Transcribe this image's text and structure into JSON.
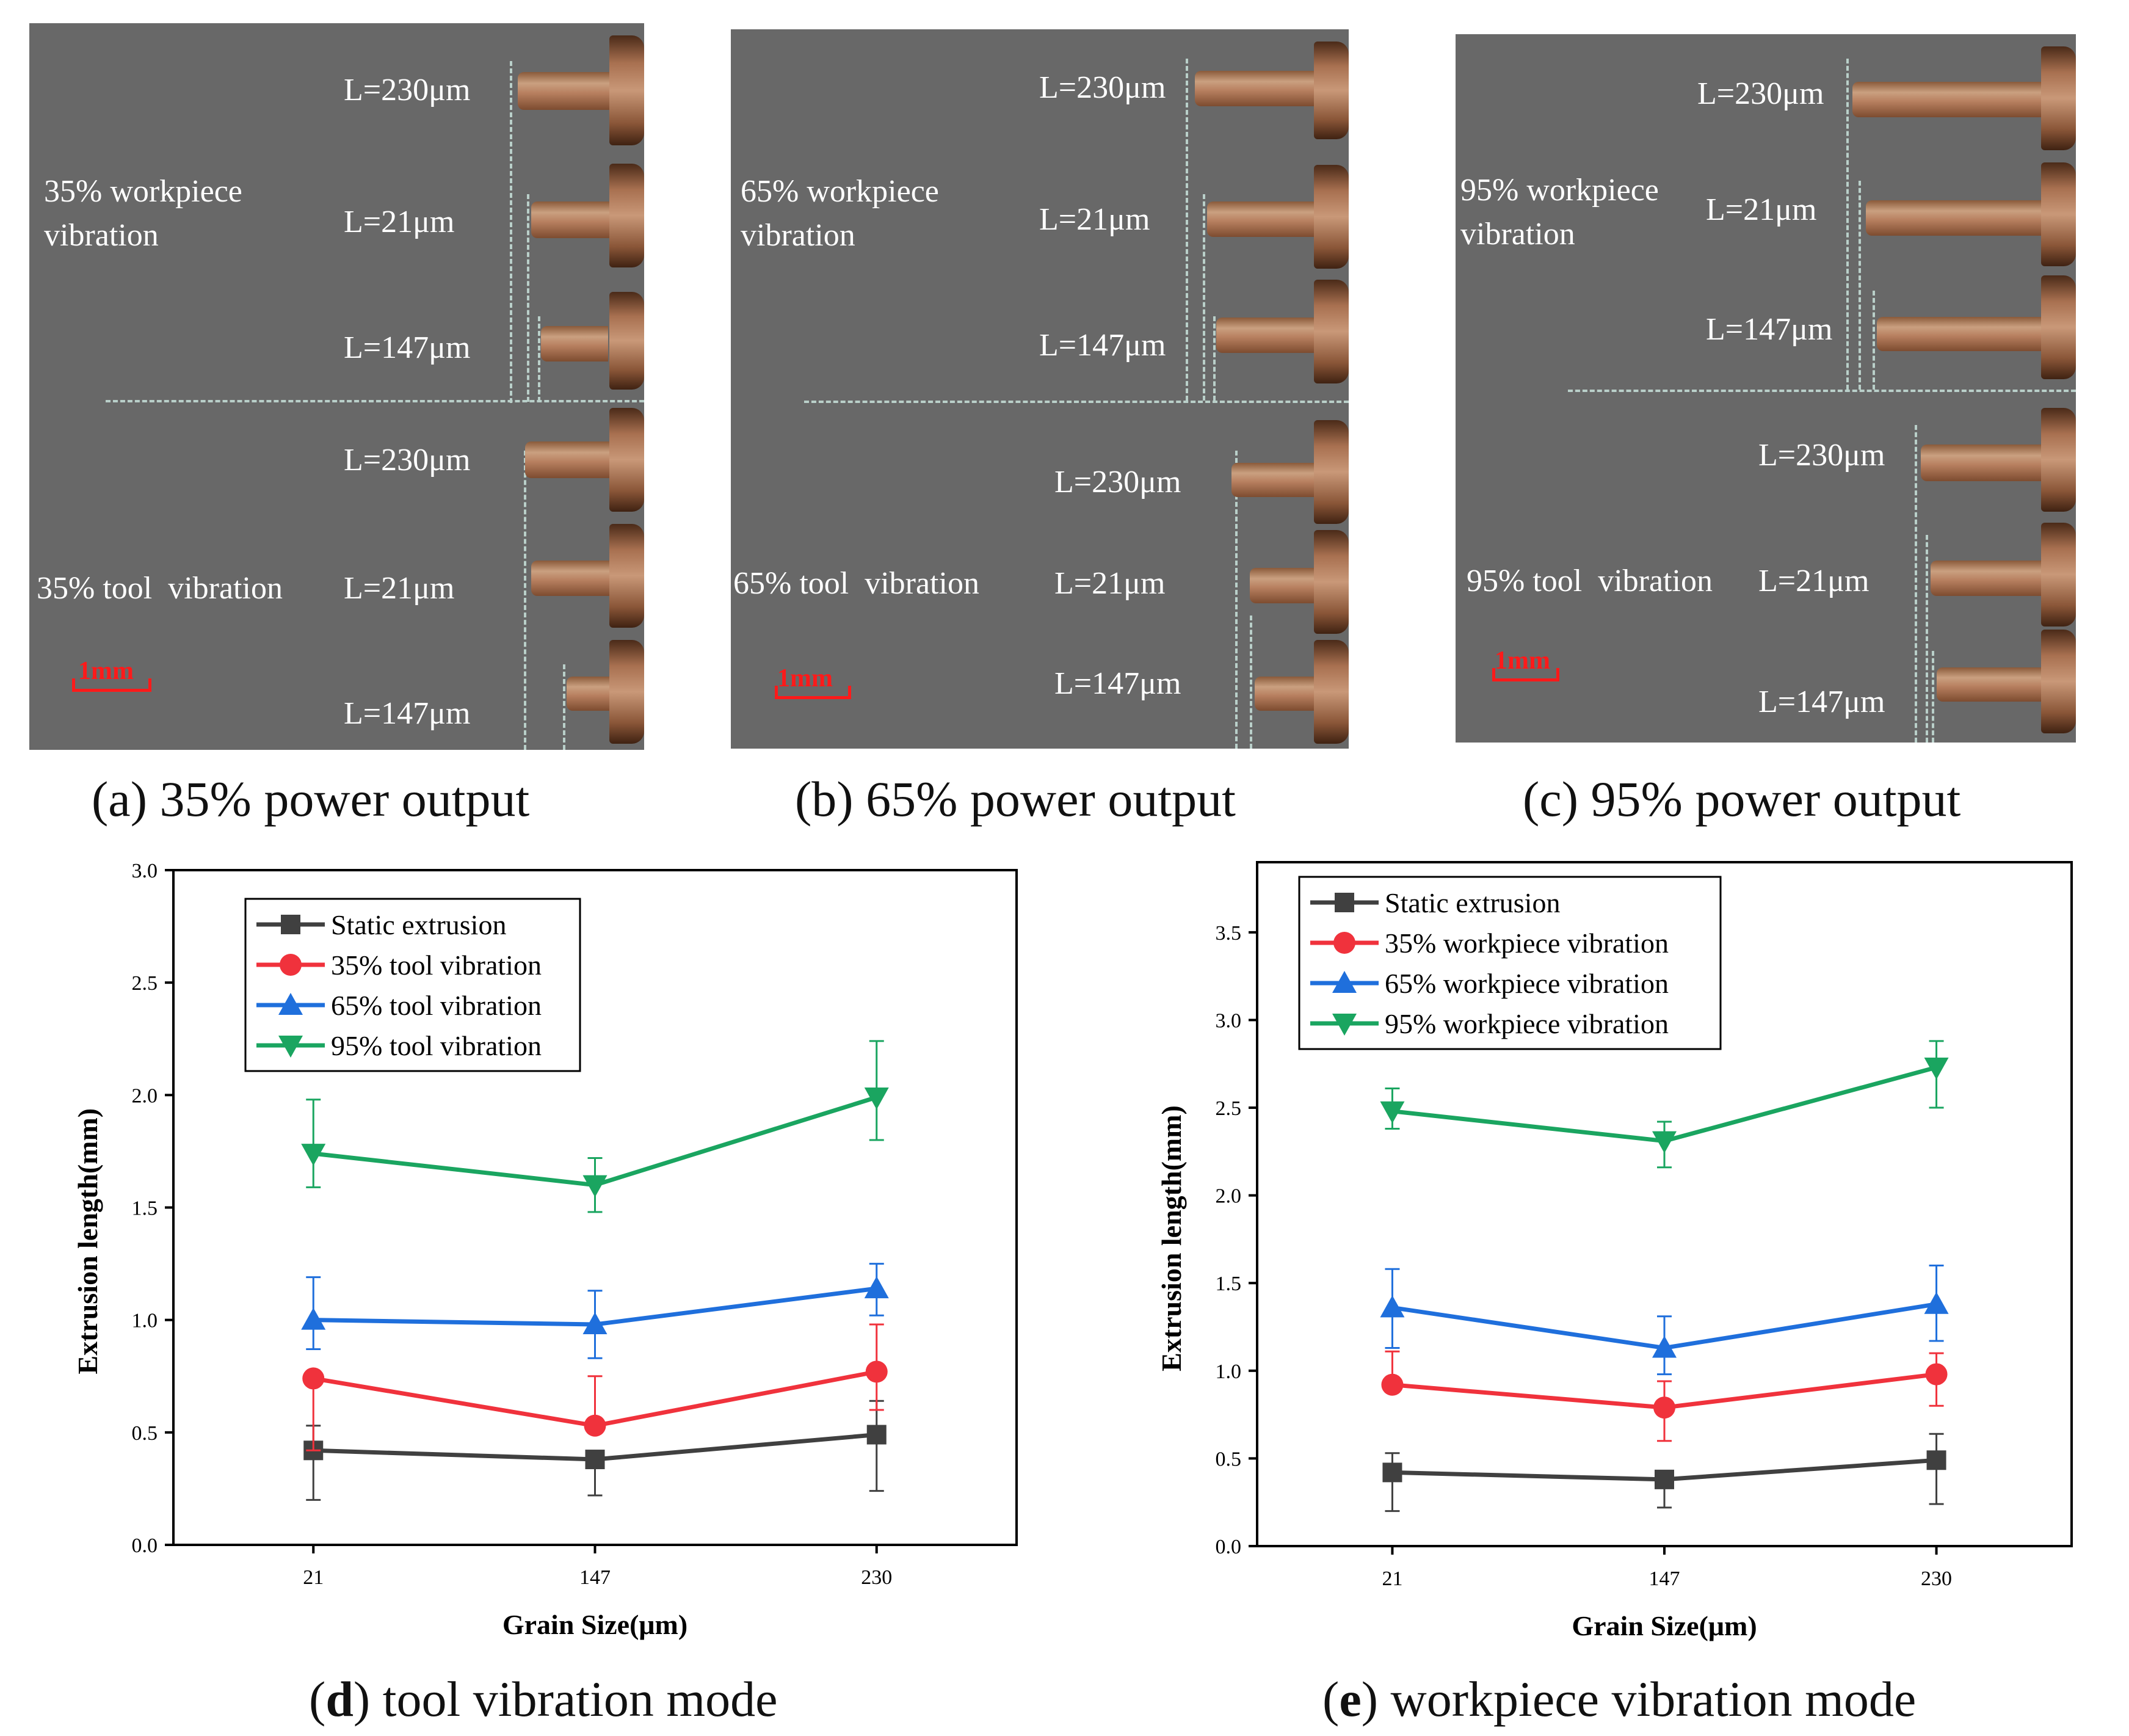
{
  "photos": [
    {
      "caption": "(a) 35% power output",
      "top_mode": "35% workpiece vibration",
      "top_mode_lines": [
        "35% workpiece",
        "vibration"
      ],
      "bottom_mode": "35% tool  vibration",
      "scale": "1mm",
      "top_labels": [
        "L=230μm",
        "L=21μm",
        "L=147μm"
      ],
      "bottom_labels": [
        "L=230μm",
        "L=21μm",
        "L=147μm"
      ]
    },
    {
      "caption": "(b) 65% power output",
      "top_mode": "65% workpiece vibration",
      "top_mode_lines": [
        "65% workpiece",
        "vibration"
      ],
      "bottom_mode": "65% tool  vibration",
      "scale": "1mm",
      "top_labels": [
        "L=230μm",
        "L=21μm",
        "L=147μm"
      ],
      "bottom_labels": [
        "L=230μm",
        "L=21μm",
        "L=147μm"
      ]
    },
    {
      "caption": "(c) 95% power output",
      "top_mode": "95% workpiece vibration",
      "top_mode_lines": [
        "95% workpiece",
        "vibration"
      ],
      "bottom_mode": "95% tool  vibration",
      "scale": "1mm",
      "top_labels": [
        "L=230μm",
        "L=21μm",
        "L=147μm"
      ],
      "bottom_labels": [
        "L=230μm",
        "L=21μm",
        "L=147μm"
      ]
    }
  ],
  "colors": {
    "static": "#404040",
    "p35": "#f0323c",
    "p65": "#1f6fdc",
    "p95": "#1aa560",
    "photo_bg": "#686868",
    "scale": "#ff1a1a"
  },
  "chart_data": [
    {
      "type": "line",
      "caption_letter": "d",
      "caption_rest": " tool vibration mode",
      "xlabel": "Grain Size(μm)",
      "ylabel": "Extrusion length(mm)",
      "categories": [
        "21",
        "147",
        "230"
      ],
      "ylim": [
        0.0,
        3.0
      ],
      "yticks": [
        "0.0",
        "0.5",
        "1.0",
        "1.5",
        "2.0",
        "2.5",
        "3.0"
      ],
      "legend_position": "top-left",
      "series": [
        {
          "name": "Static extrusion",
          "marker": "square",
          "color": "#404040",
          "values": [
            0.42,
            0.38,
            0.49
          ],
          "err_low": [
            0.2,
            0.22,
            0.24
          ],
          "err_high": [
            0.53,
            0.38,
            0.64
          ]
        },
        {
          "name": "35% tool vibration",
          "marker": "circle",
          "color": "#f0323c",
          "values": [
            0.74,
            0.53,
            0.77
          ],
          "err_low": [
            0.42,
            0.53,
            0.6
          ],
          "err_high": [
            0.74,
            0.75,
            0.98
          ]
        },
        {
          "name": "65% tool vibration",
          "marker": "triangle-up",
          "color": "#1f6fdc",
          "values": [
            1.0,
            0.98,
            1.14
          ],
          "err_low": [
            0.87,
            0.83,
            1.02
          ],
          "err_high": [
            1.19,
            1.13,
            1.25
          ]
        },
        {
          "name": "95% tool vibration",
          "marker": "triangle-down",
          "color": "#1aa560",
          "values": [
            1.74,
            1.6,
            1.99
          ],
          "err_low": [
            1.59,
            1.48,
            1.8
          ],
          "err_high": [
            1.98,
            1.72,
            2.24
          ]
        }
      ]
    },
    {
      "type": "line",
      "caption_letter": "e",
      "caption_rest": " workpiece vibration mode",
      "xlabel": "Grain Size(μm)",
      "ylabel": "Extrusion length(mm)",
      "categories": [
        "21",
        "147",
        "230"
      ],
      "ylim": [
        0.0,
        3.9
      ],
      "yticks": [
        "0.0",
        "0.5",
        "1.0",
        "1.5",
        "2.0",
        "2.5",
        "3.0",
        "3.5"
      ],
      "legend_position": "top-left",
      "series": [
        {
          "name": "Static extrusion",
          "marker": "square",
          "color": "#404040",
          "values": [
            0.42,
            0.38,
            0.49
          ],
          "err_low": [
            0.2,
            0.22,
            0.24
          ],
          "err_high": [
            0.53,
            0.38,
            0.64
          ]
        },
        {
          "name": "35% workpiece vibration",
          "marker": "circle",
          "color": "#f0323c",
          "values": [
            0.92,
            0.79,
            0.98
          ],
          "err_low": [
            0.92,
            0.6,
            0.8
          ],
          "err_high": [
            1.11,
            0.94,
            1.1
          ]
        },
        {
          "name": "65% workpiece vibration",
          "marker": "triangle-up",
          "color": "#1f6fdc",
          "values": [
            1.36,
            1.13,
            1.38
          ],
          "err_low": [
            1.13,
            0.98,
            1.17
          ],
          "err_high": [
            1.58,
            1.31,
            1.6
          ]
        },
        {
          "name": "95% workpiece vibration",
          "marker": "triangle-down",
          "color": "#1aa560",
          "values": [
            2.48,
            2.31,
            2.73
          ],
          "err_low": [
            2.38,
            2.16,
            2.5
          ],
          "err_high": [
            2.61,
            2.42,
            2.88
          ]
        }
      ]
    }
  ]
}
